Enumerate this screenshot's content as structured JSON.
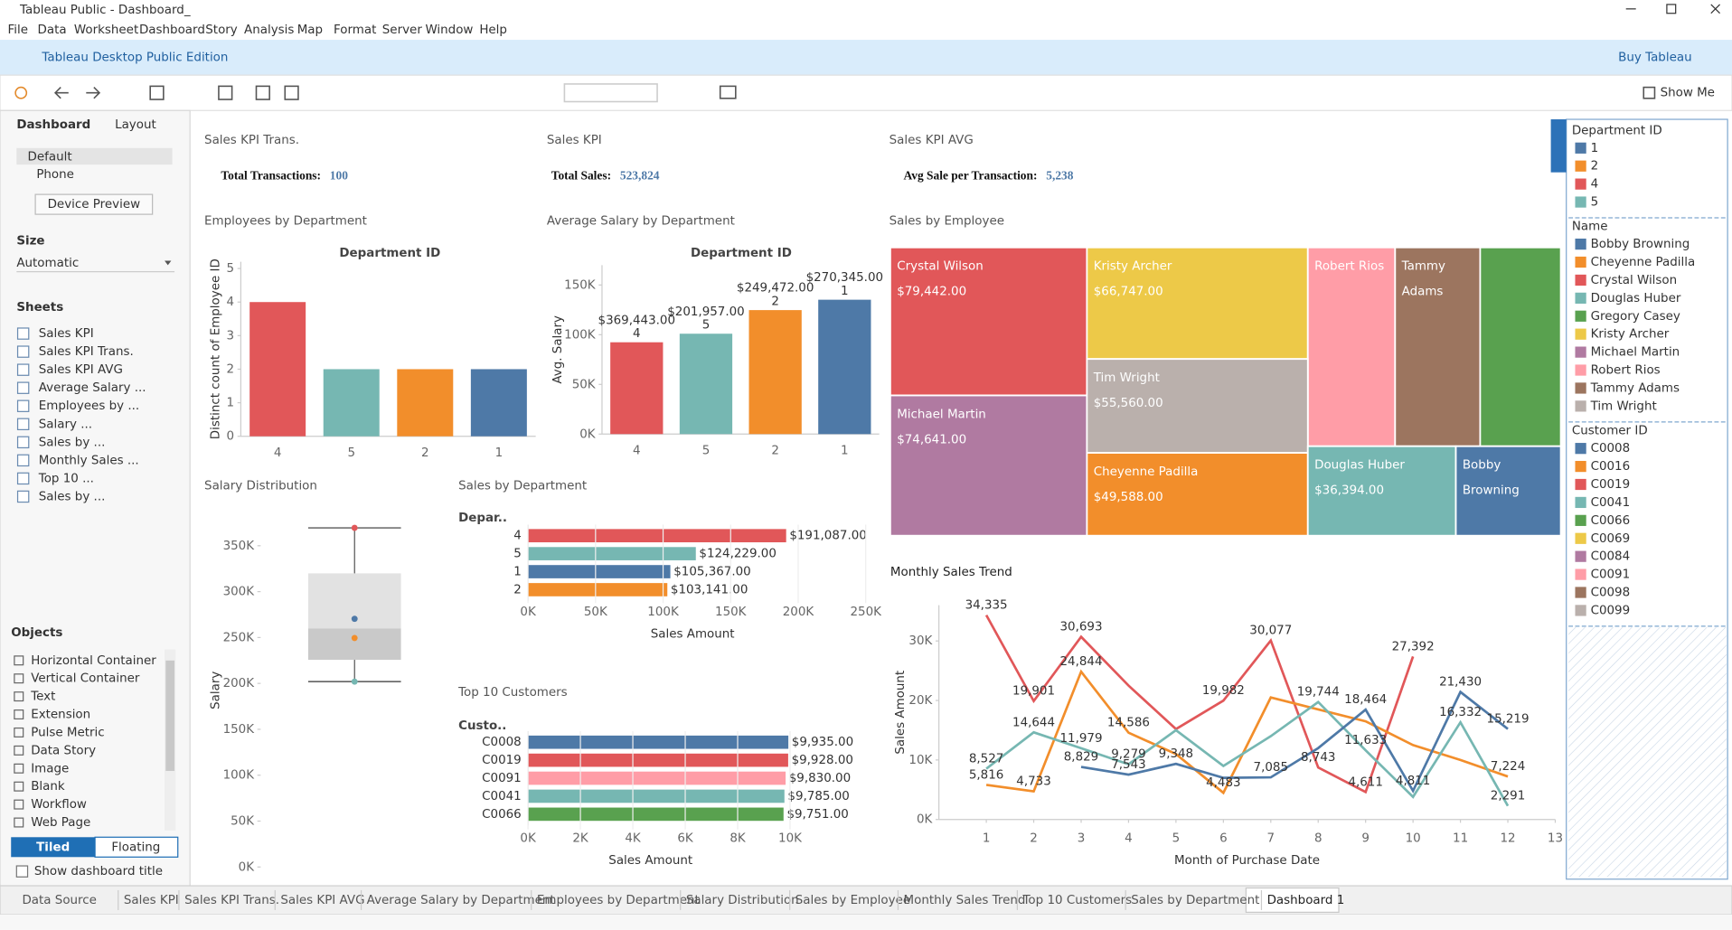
{
  "window": {
    "title": "Tableau Public - Dashboard_"
  },
  "menu": [
    "File",
    "Data",
    "Worksheet",
    "Dashboard",
    "Story",
    "Analysis",
    "Map",
    "Format",
    "Server",
    "Window",
    "Help"
  ],
  "banner": {
    "edition": "Tableau Desktop Public Edition",
    "buy": "Buy Tableau"
  },
  "toolbar": {
    "show_me": "Show Me"
  },
  "left_panel": {
    "tabs": [
      "Dashboard",
      "Layout"
    ],
    "devices": [
      "Default",
      "Phone"
    ],
    "device_preview": "Device Preview",
    "size_title": "Size",
    "size_value": "Automatic",
    "sheets_title": "Sheets",
    "sheets": [
      "Sales KPI",
      "Sales KPI Trans.",
      "Sales KPI AVG",
      "Average Salary ...",
      "Employees by ...",
      "Salary ...",
      "Sales by ...",
      "Monthly Sales ...",
      "Top 10 ...",
      "Sales by ..."
    ],
    "objects_title": "Objects",
    "objects": [
      "Horizontal Container",
      "Vertical Container",
      "Text",
      "Extension",
      "Pulse Metric",
      "Data Story",
      "Image",
      "Blank",
      "Workflow",
      "Web Page"
    ],
    "layout_modes": [
      "Tiled",
      "Floating"
    ],
    "show_title": "Show dashboard title"
  },
  "kpis": [
    {
      "title": "Sales KPI Trans.",
      "label": "Total Transactions:",
      "value": 100
    },
    {
      "title": "Sales KPI",
      "label": "Total Sales:",
      "value": {
        "value": 523824,
        "label": "523,824"
      }
    },
    {
      "title": "Sales KPI AVG",
      "label": "Avg Sale per Transaction:",
      "value": {
        "value": 5238,
        "label": "5,238"
      }
    }
  ],
  "charts": [
    {
      "type": "bar",
      "title": "Employees by Department",
      "header": "Department ID",
      "y_label": "Distinct count of Employee ID",
      "categories": [
        "4",
        "5",
        "2",
        "1"
      ],
      "values": [
        4,
        2,
        2,
        2
      ],
      "colors": [
        "#e15759",
        "#76b7b2",
        "#f28e2b",
        "#4e79a7"
      ],
      "ylim": [
        0,
        5.2
      ],
      "yticks": [
        0,
        1,
        2,
        3,
        4,
        5
      ]
    },
    {
      "type": "bar",
      "title": "Average Salary by Department",
      "header": "Department ID",
      "y_label": "Avg. Salary",
      "categories": [
        "4",
        "5",
        "2",
        "1"
      ],
      "values": [
        92361,
        100979,
        124736,
        135173
      ],
      "sum_labels": [
        "$369,443.00",
        "$201,957.00",
        "$249,472.00",
        "$270,345.00"
      ],
      "colors": [
        "#e15759",
        "#76b7b2",
        "#f28e2b",
        "#4e79a7"
      ],
      "ylim": [
        0,
        170000
      ],
      "yticks": [
        {
          "value": 0,
          "label": "0K"
        },
        {
          "value": 50000,
          "label": "50K"
        },
        {
          "value": 100000,
          "label": "100K"
        },
        {
          "value": 150000,
          "label": "150K"
        }
      ]
    },
    {
      "type": "box",
      "title": "Salary Distribution",
      "y_label": "Salary",
      "box": {
        "min": 201957,
        "q1": 225714,
        "median": 259908,
        "q3": 319894,
        "max": 369443
      },
      "points": [
        369443,
        270345,
        249472,
        201957
      ],
      "point_colors": [
        "#e15759",
        "#4e79a7",
        "#f28e2b",
        "#76b7b2"
      ],
      "ylim": [
        0,
        385000
      ],
      "yticks": [
        {
          "value": 0,
          "label": "0K"
        },
        {
          "value": 50000,
          "label": "50K"
        },
        {
          "value": 100000,
          "label": "100K"
        },
        {
          "value": 150000,
          "label": "150K"
        },
        {
          "value": 200000,
          "label": "200K"
        },
        {
          "value": 250000,
          "label": "250K"
        },
        {
          "value": 300000,
          "label": "300K"
        },
        {
          "value": 350000,
          "label": "350K"
        }
      ]
    },
    {
      "type": "bar",
      "orientation": "horizontal",
      "title": "Sales by Department",
      "header": "Depar..",
      "x_label": "Sales Amount",
      "categories": [
        "4",
        "5",
        "1",
        "2"
      ],
      "values": [
        191087,
        124229,
        105367,
        103141
      ],
      "value_labels": [
        "$191,087.00",
        "$124,229.00",
        "$105,367.00",
        "$103,141.00"
      ],
      "colors": [
        "#e15759",
        "#76b7b2",
        "#4e79a7",
        "#f28e2b"
      ],
      "xlim": [
        0,
        260000
      ],
      "xticks": [
        {
          "value": 0,
          "label": "0K"
        },
        {
          "value": 50000,
          "label": "50K"
        },
        {
          "value": 100000,
          "label": "100K"
        },
        {
          "value": 150000,
          "label": "150K"
        },
        {
          "value": 200000,
          "label": "200K"
        },
        {
          "value": 250000,
          "label": "250K"
        }
      ]
    },
    {
      "type": "bar",
      "orientation": "horizontal",
      "title": "Top 10 Customers",
      "header": "Custo..",
      "x_label": "Sales Amount",
      "categories": [
        "C0008",
        "C0019",
        "C0091",
        "C0041",
        "C0066"
      ],
      "values": [
        9935,
        9928,
        9830,
        9785,
        9751
      ],
      "value_labels": [
        "$9,935.00",
        "$9,928.00",
        "$9,830.00",
        "$9,785.00",
        "$9,751.00"
      ],
      "colors": [
        "#4e79a7",
        "#e15759",
        "#ff9da7",
        "#76b7b2",
        "#59a14f"
      ],
      "xlim": [
        0,
        10200
      ],
      "xticks": [
        {
          "value": 0,
          "label": "0K"
        },
        {
          "value": 2000,
          "label": "2K"
        },
        {
          "value": 4000,
          "label": "4K"
        },
        {
          "value": 6000,
          "label": "6K"
        },
        {
          "value": 8000,
          "label": "8K"
        },
        {
          "value": 10000,
          "label": "10K"
        }
      ]
    },
    {
      "type": "treemap",
      "title": "Sales by Employee",
      "categories": [
        "Crystal Wilson",
        "Kristy Archer",
        "Robert Rios",
        "Tammy Adams",
        null,
        "Michael Martin",
        "Tim Wright",
        "Cheyenne Padilla",
        "Douglas Huber",
        "Bobby Browning"
      ],
      "values": [
        79442,
        66747,
        46900,
        45700,
        43400,
        74641,
        55560,
        49588,
        36394,
        25400
      ],
      "value_labels": [
        "$79,442.00",
        "$66,747.00",
        null,
        null,
        null,
        "$74,641.00",
        "$55,560.00",
        "$49,588.00",
        "$36,394.00",
        null
      ],
      "colors": [
        "#e15759",
        "#edc948",
        "#ff9da7",
        "#9c755f",
        "#59a14f",
        "#b07aa1",
        "#bab0ac",
        "#f28e2b",
        "#76b7b2",
        "#4e79a7"
      ]
    },
    {
      "type": "line",
      "title": "Monthly Sales Trend",
      "x_label": "Month of Purchase Date",
      "y_label": "Sales Amount",
      "x": [
        1,
        2,
        3,
        4,
        5,
        6,
        7,
        8,
        9,
        10,
        11,
        12
      ],
      "series": [
        {
          "color": "#e15759",
          "values": [
            34335,
            19901,
            30693,
            22500,
            15200,
            19982,
            30077,
            8743,
            4611,
            27392,
            null,
            null
          ],
          "value_labels": [
            "34,335",
            "19,901",
            "30,693",
            null,
            null,
            "19,982",
            "30,077",
            "8,743",
            "4,611",
            "27,392",
            null,
            null
          ]
        },
        {
          "color": "#f28e2b",
          "values": [
            5816,
            4733,
            24844,
            14586,
            11000,
            4483,
            20500,
            18500,
            16500,
            12500,
            10000,
            7224
          ],
          "value_labels": [
            "5,816",
            "4,733",
            "24,844",
            "14,586",
            null,
            "4,483",
            null,
            null,
            null,
            null,
            null,
            "7,224"
          ]
        },
        {
          "color": "#76b7b2",
          "values": [
            8527,
            14644,
            11979,
            9279,
            15000,
            9000,
            14000,
            19744,
            11633,
            3800,
            16332,
            2291
          ],
          "value_labels": [
            "8,527",
            "14,644",
            "11,979",
            "9,279",
            null,
            null,
            null,
            "19,744",
            "11,633",
            null,
            "16,332",
            "2,291"
          ]
        },
        {
          "color": "#4e79a7",
          "values": [
            null,
            null,
            8829,
            7543,
            9348,
            7000,
            7085,
            12000,
            18464,
            4811,
            21430,
            15219
          ],
          "value_labels": [
            null,
            null,
            "8,829",
            "7,543",
            "9,348",
            null,
            "7,085",
            null,
            "18,464",
            "4,811",
            "21,430",
            "15,219"
          ]
        }
      ],
      "xlim": [
        0,
        13
      ],
      "xticks": [
        1,
        2,
        3,
        4,
        5,
        6,
        7,
        8,
        9,
        10,
        11,
        12,
        13
      ],
      "ylim": [
        0,
        36000
      ],
      "yticks": [
        {
          "value": 0,
          "label": "0K"
        },
        {
          "value": 10000,
          "label": "10K"
        },
        {
          "value": 20000,
          "label": "20K"
        },
        {
          "value": 30000,
          "label": "30K"
        }
      ]
    }
  ],
  "legends": [
    {
      "title": "Department ID",
      "items": [
        {
          "name": "1",
          "color": "#4e79a7"
        },
        {
          "name": "2",
          "color": "#f28e2b"
        },
        {
          "name": "4",
          "color": "#e15759"
        },
        {
          "name": "5",
          "color": "#76b7b2"
        }
      ]
    },
    {
      "title": "Name",
      "items": [
        {
          "name": "Bobby Browning",
          "color": "#4e79a7"
        },
        {
          "name": "Cheyenne Padilla",
          "color": "#f28e2b"
        },
        {
          "name": "Crystal Wilson",
          "color": "#e15759"
        },
        {
          "name": "Douglas Huber",
          "color": "#76b7b2"
        },
        {
          "name": "Gregory Casey",
          "color": "#59a14f"
        },
        {
          "name": "Kristy Archer",
          "color": "#edc948"
        },
        {
          "name": "Michael Martin",
          "color": "#b07aa1"
        },
        {
          "name": "Robert Rios",
          "color": "#ff9da7"
        },
        {
          "name": "Tammy Adams",
          "color": "#9c755f"
        },
        {
          "name": "Tim Wright",
          "color": "#bab0ac"
        }
      ]
    },
    {
      "title": "Customer ID",
      "items": [
        {
          "name": "C0008",
          "color": "#4e79a7"
        },
        {
          "name": "C0016",
          "color": "#f28e2b"
        },
        {
          "name": "C0019",
          "color": "#e15759"
        },
        {
          "name": "C0041",
          "color": "#76b7b2"
        },
        {
          "name": "C0066",
          "color": "#59a14f"
        },
        {
          "name": "C0069",
          "color": "#edc948"
        },
        {
          "name": "C0084",
          "color": "#b07aa1"
        },
        {
          "name": "C0091",
          "color": "#ff9da7"
        },
        {
          "name": "C0098",
          "color": "#9c755f"
        },
        {
          "name": "C0099",
          "color": "#bab0ac"
        }
      ]
    }
  ],
  "tabs": [
    "Data Source",
    "Sales KPI",
    "Sales KPI Trans.",
    "Sales KPI AVG",
    "Average Salary by Department",
    "Employees by Department",
    "Salary Distribution",
    "Sales by Employee",
    "Monthly Sales Trend",
    "Top 10 Customers",
    "Sales by Department",
    "Dashboard 1"
  ]
}
